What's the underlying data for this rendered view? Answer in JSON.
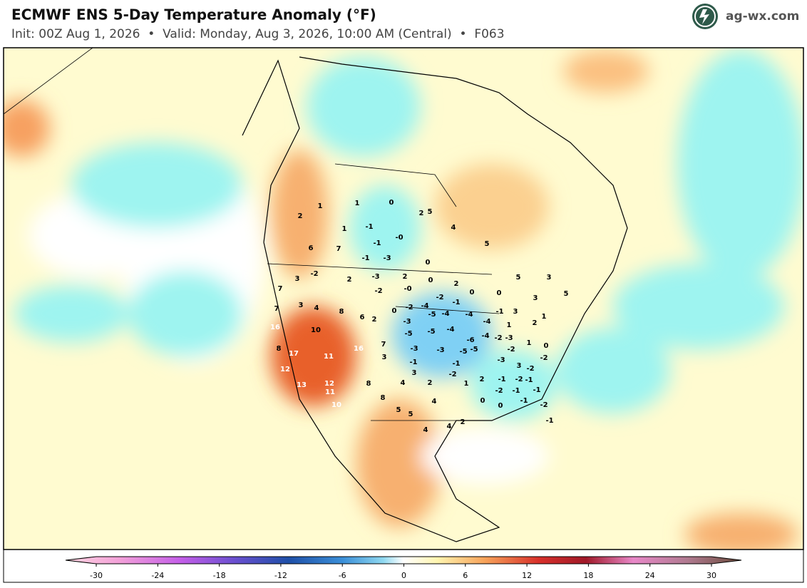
{
  "header": {
    "title": "ECMWF ENS 5-Day Temperature Anomaly (°F)",
    "subtitle": "Init: 00Z Aug 1, 2026  •  Valid: Monday, Aug 3, 2026, 10:00 AM (Central)  •  F063",
    "logo": "ag-wx.com"
  },
  "map": {
    "labels": [
      2,
      1,
      1,
      0,
      2,
      5,
      1,
      -1,
      -1,
      "-0",
      4,
      5,
      6,
      7,
      -1,
      -3,
      0,
      5,
      3,
      -2,
      2,
      -3,
      2,
      "-0",
      -2,
      0,
      2,
      0,
      0,
      3,
      5,
      7,
      3,
      4,
      8,
      6,
      2,
      7,
      0,
      -2,
      16,
      10,
      16,
      7,
      3,
      17,
      11,
      12,
      12,
      11,
      10,
      13,
      8,
      8,
      8,
      4,
      2,
      3,
      4,
      5,
      5,
      4,
      4,
      2,
      1,
      -2,
      -1,
      -1,
      -3,
      -3,
      -5,
      -5,
      -6,
      -5,
      -3,
      -5,
      -4,
      -4,
      -4,
      -5,
      -4,
      -4,
      -2,
      -3,
      -2,
      1,
      0,
      -2,
      -3,
      3,
      -2,
      2,
      -1,
      -2,
      -1,
      -2,
      -1,
      -1,
      0,
      0,
      -1,
      -2,
      -1,
      -4,
      -2,
      -1,
      -1,
      1,
      2,
      1,
      3,
      3
    ]
  },
  "colorbar": {
    "ticks": [
      -30,
      -24,
      -18,
      -12,
      -6,
      0,
      6,
      12,
      18,
      24,
      30
    ]
  }
}
